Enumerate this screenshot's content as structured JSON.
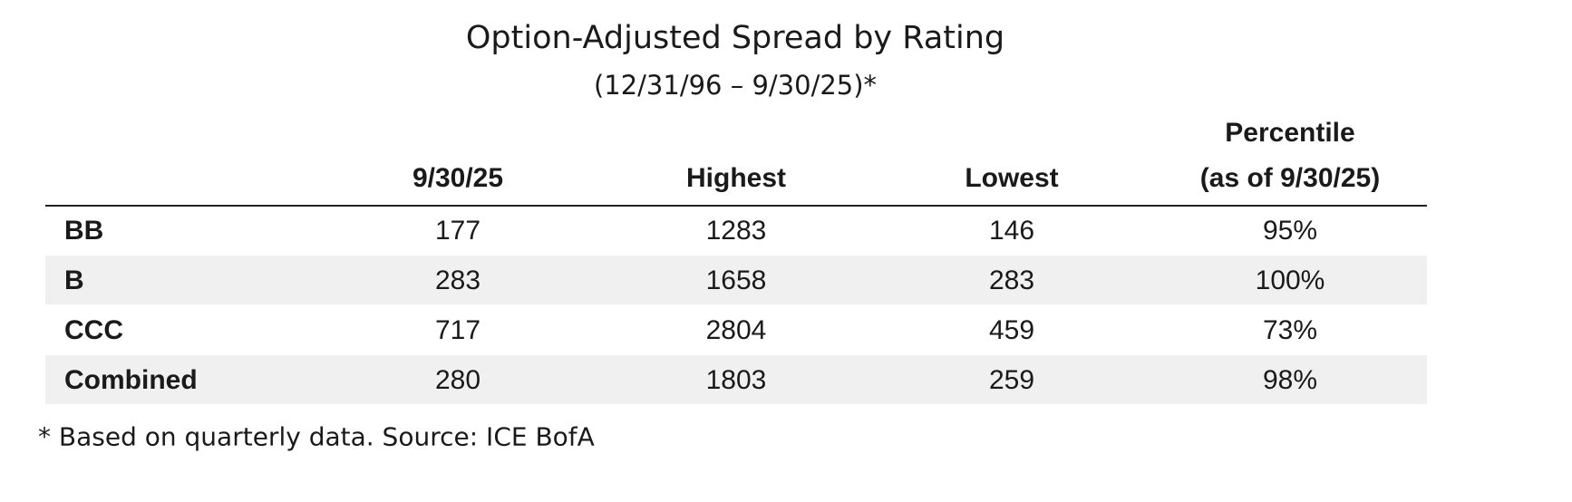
{
  "title": "Option-Adjusted Spread by Rating",
  "subtitle": "(12/31/96 – 9/30/25)*",
  "table": {
    "columns": [
      [
        "9/30/25"
      ],
      [
        "Highest"
      ],
      [
        "Lowest"
      ],
      [
        "Percentile",
        "(as of 9/30/25)"
      ]
    ],
    "rows": [
      [
        "BB",
        177,
        1283,
        146,
        "95%"
      ],
      [
        "B",
        283,
        1658,
        283,
        "100%"
      ],
      [
        "CCC",
        717,
        2804,
        459,
        "73%"
      ],
      [
        "Combined",
        280,
        1803,
        259,
        "98%"
      ]
    ]
  },
  "footnote": "* Based on quarterly data. Source: ICE BofA"
}
